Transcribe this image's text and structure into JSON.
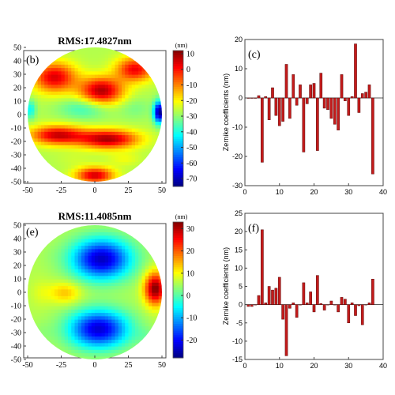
{
  "chart_data": [
    {
      "panel": "(b)",
      "type": "heatmap",
      "title": "RMS:17.4827nm",
      "colorbar": {
        "unit": "(nm)",
        "range": [
          -75,
          12
        ],
        "ticks": [
          10,
          0,
          -10,
          -20,
          -30,
          -40,
          -50,
          -60,
          -70
        ]
      },
      "xlim": [
        -50,
        50
      ],
      "ylim": [
        -50,
        50
      ],
      "xticks": [
        -50,
        -25,
        0,
        25,
        50
      ],
      "yticks": [
        50,
        40,
        30,
        20,
        10,
        0,
        -10,
        -20,
        -30,
        -40,
        -50
      ],
      "features": [
        {
          "x": 5,
          "y": 18,
          "value": 8,
          "sx": 16,
          "sy": 10
        },
        {
          "x": -30,
          "y": 28,
          "value": 4,
          "sx": 16,
          "sy": 11
        },
        {
          "x": 30,
          "y": 34,
          "value": 2,
          "sx": 14,
          "sy": 9
        },
        {
          "x": -28,
          "y": -15,
          "value": 5,
          "sx": 20,
          "sy": 7
        },
        {
          "x": 10,
          "y": -18,
          "value": 8,
          "sx": 22,
          "sy": 7
        },
        {
          "x": 0,
          "y": -45,
          "value": 5,
          "sx": 14,
          "sy": 6
        },
        {
          "x": -8,
          "y": 5,
          "value": -38,
          "sx": 18,
          "sy": 8
        },
        {
          "x": 30,
          "y": 5,
          "value": -32,
          "sx": 12,
          "sy": 8
        },
        {
          "x": 48,
          "y": 2,
          "value": -75,
          "sx": 4,
          "sy": 8
        },
        {
          "x": -48,
          "y": 4,
          "value": -42,
          "sx": 4,
          "sy": 7
        },
        {
          "x": -15,
          "y": -33,
          "value": -25,
          "sx": 14,
          "sy": 5
        },
        {
          "x": 22,
          "y": -33,
          "value": -22,
          "sx": 12,
          "sy": 5
        }
      ]
    },
    {
      "panel": "(c)",
      "type": "bar",
      "ylabel": "Zernike coefficients (nm)",
      "xlim": [
        0,
        40
      ],
      "ylim": [
        -30,
        20
      ],
      "xticks": [
        0,
        10,
        20,
        30,
        40
      ],
      "yticks": [
        20,
        10,
        0,
        -10,
        -20,
        -30
      ],
      "x": [
        1,
        2,
        3,
        4,
        5,
        6,
        7,
        8,
        9,
        10,
        11,
        12,
        13,
        14,
        15,
        16,
        17,
        18,
        19,
        20,
        21,
        22,
        23,
        24,
        25,
        26,
        27,
        28,
        29,
        30,
        31,
        32,
        33,
        34,
        35,
        36,
        37
      ],
      "values": [
        0,
        0,
        0,
        0.8,
        -22,
        0.5,
        -7.5,
        3.5,
        -6,
        -9.5,
        -8,
        11.5,
        -7,
        8,
        -2.5,
        4.5,
        -18.5,
        -2,
        4.5,
        5,
        -18,
        8.5,
        -3.5,
        -4,
        -7,
        -9,
        -11,
        8,
        -1,
        -6,
        0.5,
        18.5,
        -5,
        1.5,
        2,
        4.5,
        -26
      ]
    },
    {
      "panel": "(e)",
      "type": "heatmap",
      "title": "RMS:11.4085nm",
      "colorbar": {
        "unit": "(nm)",
        "range": [
          -28,
          33
        ],
        "ticks": [
          30,
          20,
          10,
          0,
          -10,
          -20
        ]
      },
      "xlim": [
        -50,
        50
      ],
      "ylim": [
        -50,
        50
      ],
      "xticks": [
        -50,
        -25,
        0,
        25,
        50
      ],
      "yticks": [
        50,
        40,
        30,
        20,
        10,
        0,
        -10,
        -20,
        -30,
        -40,
        -50
      ],
      "features": [
        {
          "x": 5,
          "y": 25,
          "value": -24,
          "sx": 22,
          "sy": 15
        },
        {
          "x": 3,
          "y": -27,
          "value": -23,
          "sx": 22,
          "sy": 14
        },
        {
          "x": 45,
          "y": 3,
          "value": 33,
          "sx": 8,
          "sy": 12
        },
        {
          "x": -22,
          "y": 0,
          "value": 14,
          "sx": 12,
          "sy": 8
        },
        {
          "x": -40,
          "y": 0,
          "value": 8,
          "sx": 8,
          "sy": 10
        },
        {
          "x": -32,
          "y": 28,
          "value": 5,
          "sx": 10,
          "sy": 8
        },
        {
          "x": -40,
          "y": -30,
          "value": 4,
          "sx": 10,
          "sy": 8
        },
        {
          "x": 38,
          "y": -32,
          "value": 3,
          "sx": 8,
          "sy": 6
        }
      ]
    },
    {
      "panel": "(f)",
      "type": "bar",
      "ylabel": "Zernike coefficients (nm)",
      "xlim": [
        0,
        40
      ],
      "ylim": [
        -15,
        25
      ],
      "xticks": [
        0,
        10,
        20,
        30,
        40
      ],
      "yticks": [
        25,
        20,
        15,
        10,
        5,
        0,
        -5,
        -10,
        -15
      ],
      "x": [
        1,
        2,
        3,
        4,
        5,
        6,
        7,
        8,
        9,
        10,
        11,
        12,
        13,
        14,
        15,
        16,
        17,
        18,
        19,
        20,
        21,
        22,
        23,
        24,
        25,
        26,
        27,
        28,
        29,
        30,
        31,
        32,
        33,
        34,
        35,
        36,
        37
      ],
      "values": [
        -0.5,
        -0.5,
        0,
        2.5,
        20.5,
        0.5,
        5,
        4,
        4.5,
        7.5,
        -4,
        -14,
        -1,
        0.5,
        -3.5,
        0,
        6,
        0.5,
        3.5,
        -2,
        8,
        0.3,
        -1.5,
        0,
        1,
        0,
        -2,
        2,
        1.5,
        -5,
        0.5,
        -3,
        -0.3,
        -5.5,
        0,
        0.5,
        7
      ]
    }
  ]
}
